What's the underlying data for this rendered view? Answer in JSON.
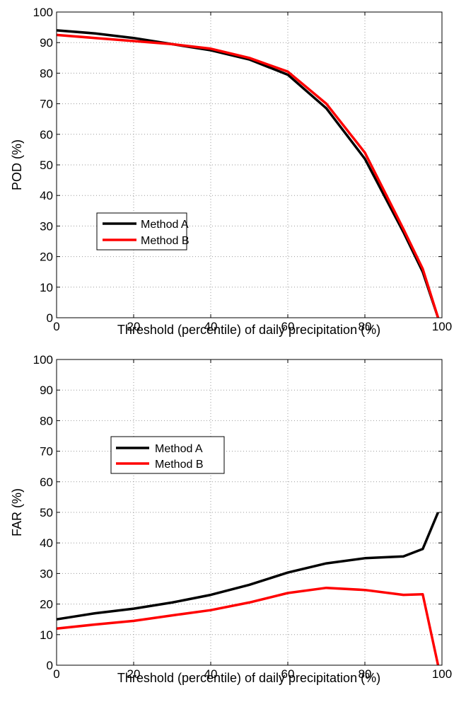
{
  "chart_data": [
    {
      "type": "line",
      "xlabel": "Threshold (percentile) of daily precipitation (%)",
      "ylabel": "POD (%)",
      "xlim": [
        0,
        100
      ],
      "ylim": [
        0,
        100
      ],
      "xticks": [
        "0",
        "20",
        "40",
        "60",
        "80",
        "100"
      ],
      "yticks": [
        "0",
        "10",
        "20",
        "30",
        "40",
        "50",
        "60",
        "70",
        "80",
        "90",
        "100"
      ],
      "grid": true,
      "legend_position": "left-center",
      "series": [
        {
          "name": "Method A",
          "color": "#000000",
          "x": [
            0,
            10,
            20,
            30,
            40,
            50,
            60,
            70,
            80,
            90,
            95,
            99
          ],
          "y": [
            94,
            93,
            91.5,
            89.5,
            87.5,
            84.5,
            79.5,
            68.5,
            52,
            28,
            15,
            0
          ]
        },
        {
          "name": "Method B",
          "color": "#ff0000",
          "x": [
            0,
            10,
            20,
            30,
            40,
            50,
            60,
            70,
            80,
            90,
            95,
            99
          ],
          "y": [
            92.5,
            91.5,
            90.5,
            89.5,
            88,
            85,
            80.5,
            70,
            54,
            29,
            16,
            0
          ]
        }
      ]
    },
    {
      "type": "line",
      "xlabel": "Threshold (percentile) of daily precipitation (%)",
      "ylabel": "FAR (%)",
      "xlim": [
        0,
        100
      ],
      "ylim": [
        0,
        100
      ],
      "xticks": [
        "0",
        "20",
        "40",
        "60",
        "80",
        "100"
      ],
      "yticks": [
        "0",
        "10",
        "20",
        "30",
        "40",
        "50",
        "60",
        "70",
        "80",
        "90",
        "100"
      ],
      "grid": true,
      "legend_position": "upper-left",
      "series": [
        {
          "name": "Method A",
          "color": "#000000",
          "x": [
            0,
            10,
            20,
            30,
            40,
            50,
            60,
            70,
            80,
            90,
            95,
            99
          ],
          "y": [
            15,
            17,
            18.5,
            20.5,
            23,
            26.3,
            30.3,
            33.3,
            35,
            35.6,
            38,
            50
          ]
        },
        {
          "name": "Method B",
          "color": "#ff0000",
          "x": [
            0,
            10,
            20,
            30,
            40,
            50,
            60,
            70,
            80,
            90,
            95,
            99
          ],
          "y": [
            12,
            13.3,
            14.5,
            16.3,
            18,
            20.5,
            23.6,
            25.3,
            24.6,
            23,
            23.2,
            0
          ]
        }
      ]
    }
  ]
}
